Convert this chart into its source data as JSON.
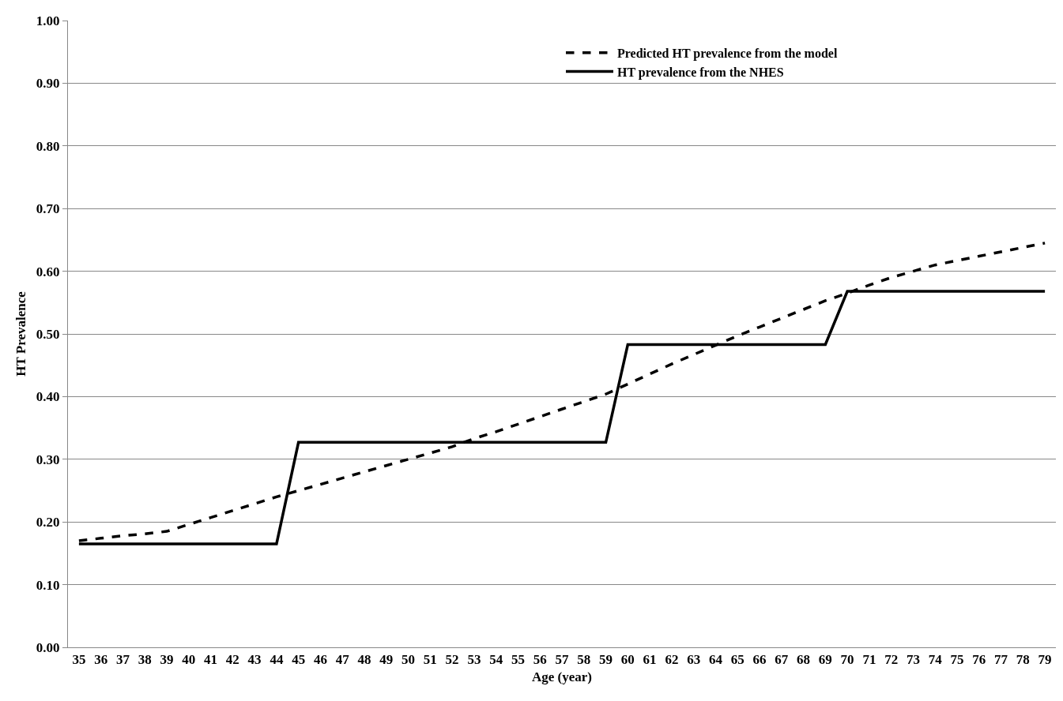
{
  "chart_data": {
    "type": "line",
    "xlabel": "Age (year)",
    "ylabel": "HT Prevalence",
    "categories": [
      "35",
      "36",
      "37",
      "38",
      "39",
      "40",
      "41",
      "42",
      "43",
      "44",
      "45",
      "46",
      "47",
      "48",
      "49",
      "50",
      "51",
      "52",
      "53",
      "54",
      "55",
      "56",
      "57",
      "58",
      "59",
      "60",
      "61",
      "62",
      "63",
      "64",
      "65",
      "66",
      "67",
      "68",
      "69",
      "70",
      "71",
      "72",
      "73",
      "74",
      "75",
      "76",
      "77",
      "78",
      "79"
    ],
    "series": [
      {
        "name": "Predicted HT prevalence from the model",
        "color": "#000000",
        "line_style": "dashed",
        "values": [
          0.17,
          0.174,
          0.178,
          0.181,
          0.185,
          0.196,
          0.207,
          0.218,
          0.229,
          0.24,
          0.25,
          0.26,
          0.27,
          0.28,
          0.29,
          0.3,
          0.31,
          0.32,
          0.333,
          0.344,
          0.356,
          0.368,
          0.38,
          0.392,
          0.404,
          0.42,
          0.436,
          0.452,
          0.467,
          0.482,
          0.497,
          0.511,
          0.525,
          0.539,
          0.553,
          0.565,
          0.578,
          0.59,
          0.6,
          0.61,
          0.617,
          0.624,
          0.631,
          0.638,
          0.645
        ]
      },
      {
        "name": "HT prevalence from the NHES",
        "color": "#000000",
        "line_style": "solid",
        "values": [
          0.165,
          0.165,
          0.165,
          0.165,
          0.165,
          0.165,
          0.165,
          0.165,
          0.165,
          0.165,
          0.327,
          0.327,
          0.327,
          0.327,
          0.327,
          0.327,
          0.327,
          0.327,
          0.327,
          0.327,
          0.327,
          0.327,
          0.327,
          0.327,
          0.327,
          0.483,
          0.483,
          0.483,
          0.483,
          0.483,
          0.483,
          0.483,
          0.483,
          0.483,
          0.483,
          0.568,
          0.568,
          0.568,
          0.568,
          0.568,
          0.568,
          0.568,
          0.568,
          0.568,
          0.568
        ]
      }
    ],
    "ylim": [
      0,
      1
    ],
    "yticks": [
      {
        "value": 0,
        "label": "0.00"
      },
      {
        "value": 0.1,
        "label": "0.10"
      },
      {
        "value": 0.2,
        "label": "0.20"
      },
      {
        "value": 0.3,
        "label": "0.30"
      },
      {
        "value": 0.4,
        "label": "0.40"
      },
      {
        "value": 0.5,
        "label": "0.50"
      },
      {
        "value": 0.6,
        "label": "0.60"
      },
      {
        "value": 0.7,
        "label": "0.70"
      },
      {
        "value": 0.8,
        "label": "0.80"
      },
      {
        "value": 0.9,
        "label": "0.90"
      },
      {
        "value": 1,
        "label": "1.00"
      }
    ],
    "grid": "y",
    "legend": "top",
    "marker": "none"
  }
}
